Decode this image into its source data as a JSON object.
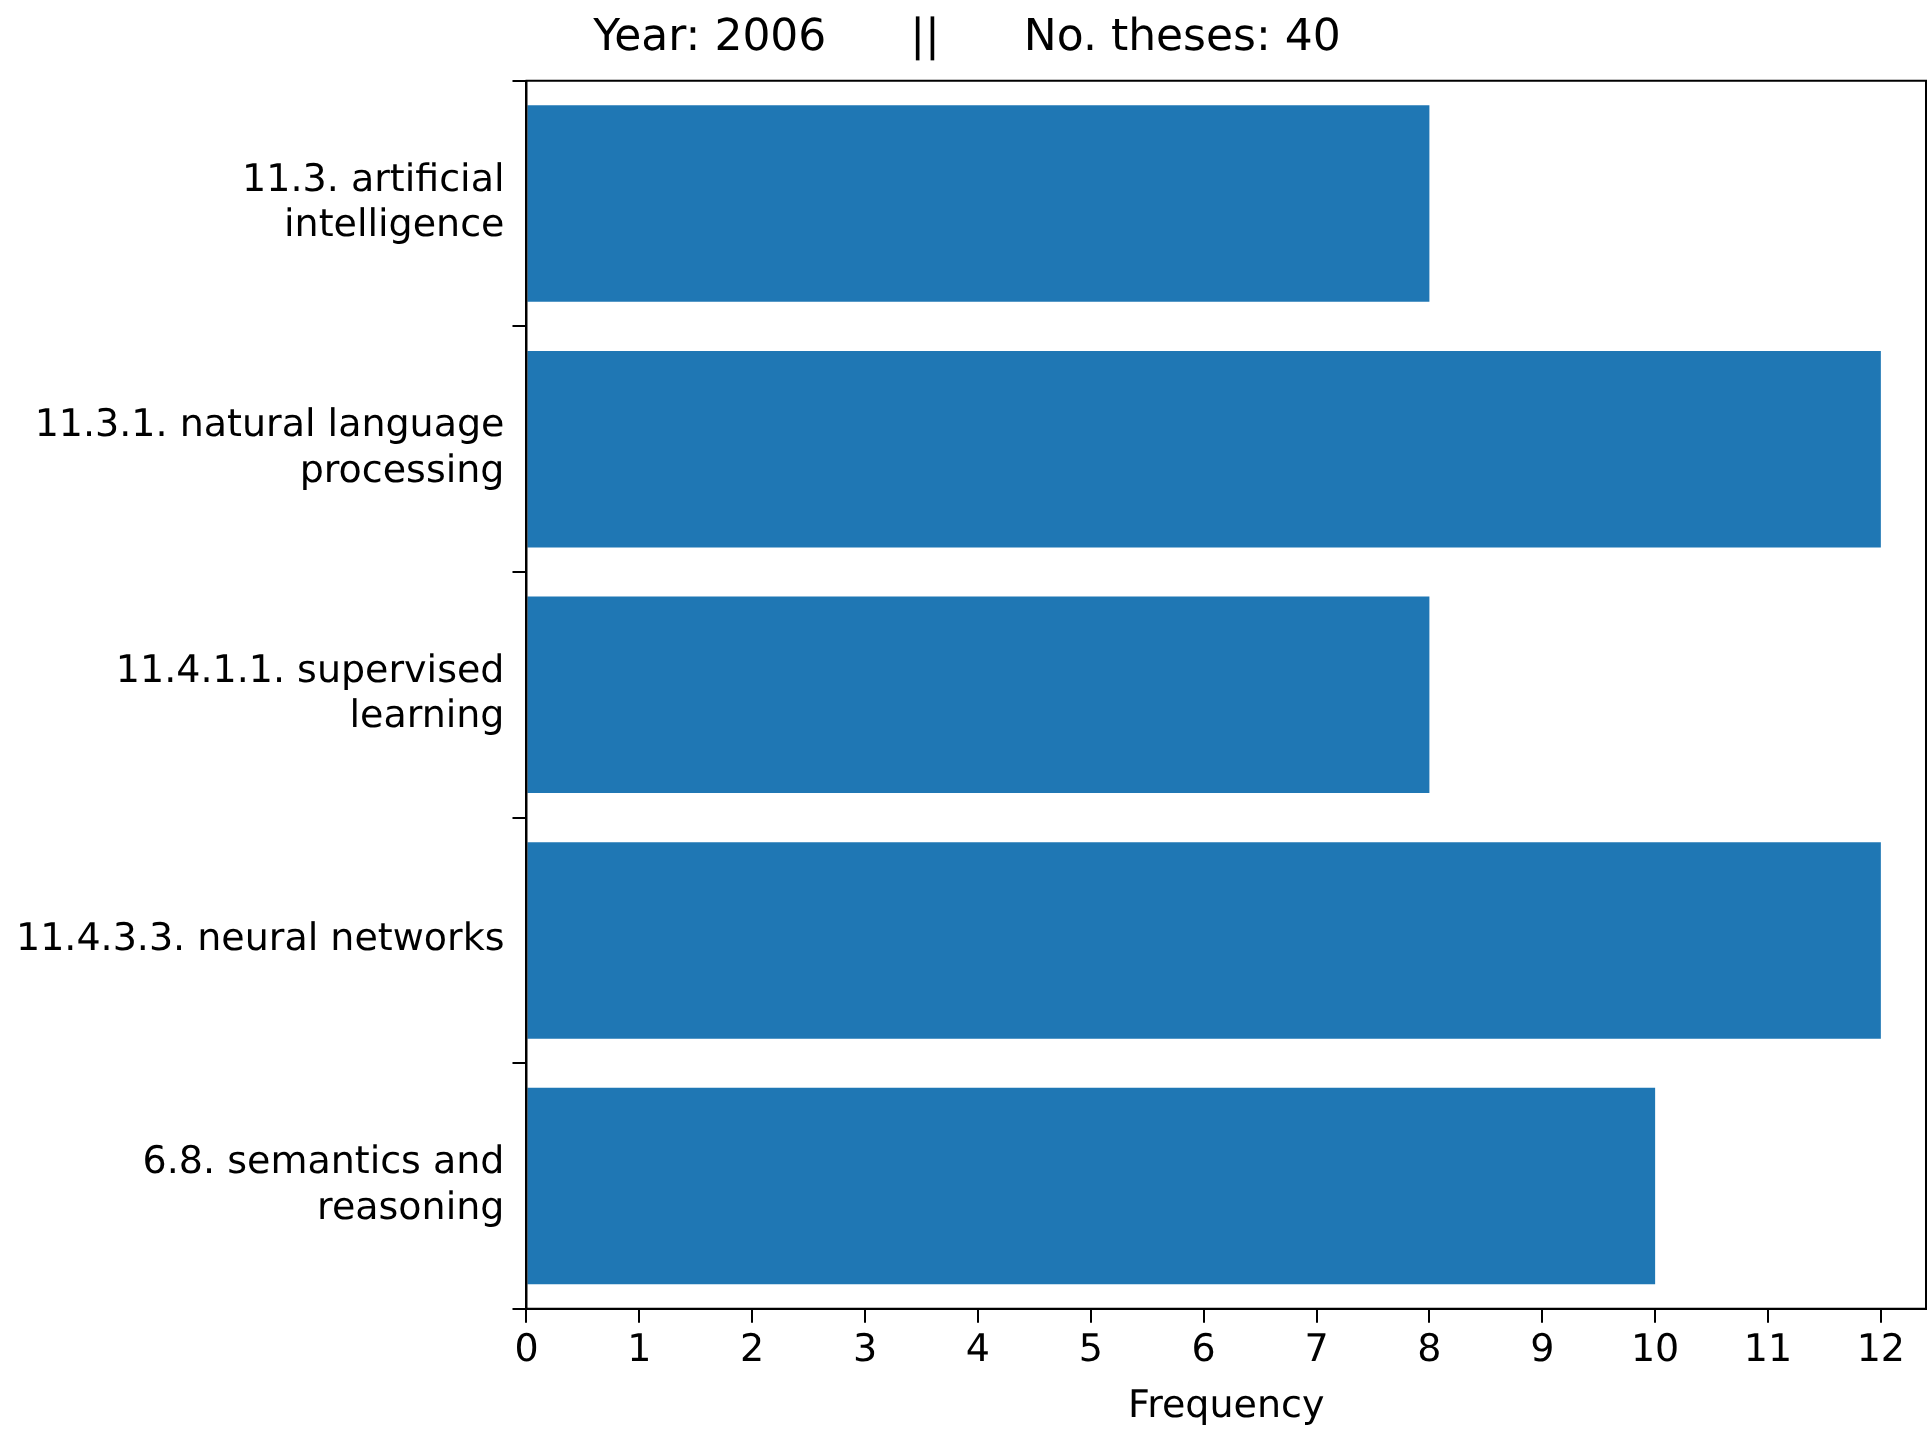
{
  "chart_data": {
    "type": "bar",
    "orientation": "horizontal",
    "title": "Year: 2006      ||      No. theses: 40",
    "xlabel": "Frequency",
    "categories": [
      "11.3. artificial intelligence",
      "11.3.1. natural language processing",
      "11.4.1.1. supervised learning",
      "11.4.3.3. neural networks",
      "6.8. semantics and reasoning"
    ],
    "values": [
      8,
      12,
      8,
      12,
      10
    ],
    "color": "#1f77b4",
    "xlim": [
      0,
      12.4
    ],
    "xticks": [
      0,
      1,
      2,
      3,
      4,
      5,
      6,
      7,
      8,
      9,
      10,
      11,
      12
    ],
    "grid": false,
    "legend": false
  }
}
